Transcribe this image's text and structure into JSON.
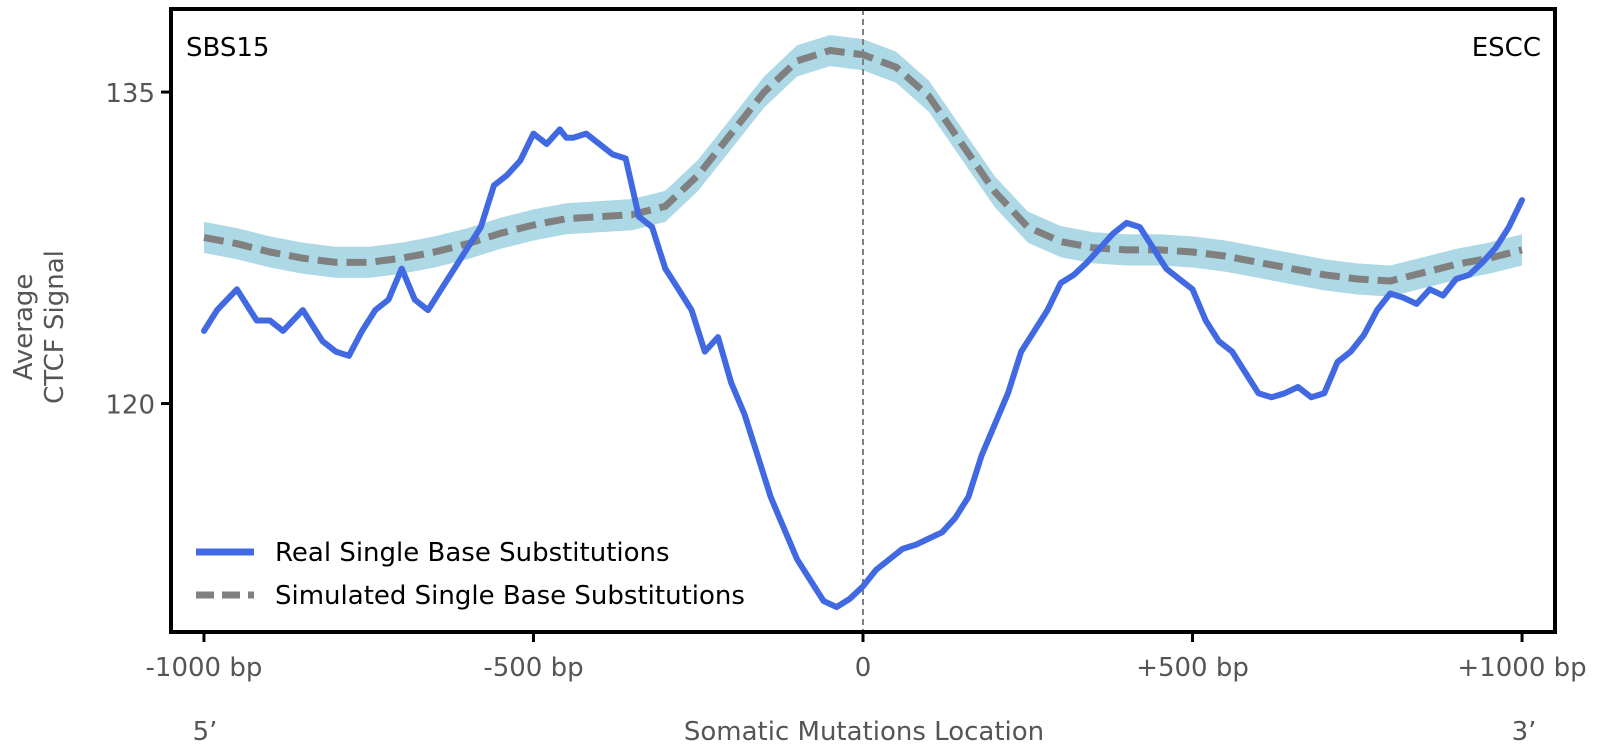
{
  "colors": {
    "real": "#4169E1",
    "simulated": "#808080",
    "band": "#ADD8E6",
    "frame": "#000000",
    "text": "#555555"
  },
  "chart_data": {
    "type": "line",
    "title_left": "SBS15",
    "title_right": "ESCC",
    "xlabel": "Somatic Mutations Location",
    "ylabel_line1": "Average",
    "ylabel_line2": "CTCF Signal",
    "xlim": [
      -1050,
      1050
    ],
    "ylim": [
      109,
      139
    ],
    "x_ticks": [
      {
        "value": -1000,
        "label": "-1000 bp"
      },
      {
        "value": -500,
        "label": "-500 bp"
      },
      {
        "value": 0,
        "label": "0"
      },
      {
        "value": 500,
        "label": "+500 bp"
      },
      {
        "value": 1000,
        "label": "+1000 bp"
      }
    ],
    "y_ticks": [
      {
        "value": 120,
        "label": "120"
      },
      {
        "value": 135,
        "label": "135"
      }
    ],
    "end_labels": {
      "left": "5’",
      "right": "3’"
    },
    "center_line": 0,
    "legend": {
      "position": "lower-left",
      "entries": [
        {
          "label": "Real Single Base Substitutions",
          "style": "solid"
        },
        {
          "label": "Simulated Single Base Substitutions",
          "style": "dashed"
        }
      ]
    },
    "series": [
      {
        "name": "Real Single Base Substitutions",
        "style": "solid",
        "x": [
          -1000,
          -980,
          -950,
          -920,
          -900,
          -880,
          -850,
          -820,
          -800,
          -780,
          -760,
          -740,
          -720,
          -700,
          -680,
          -660,
          -640,
          -620,
          -600,
          -580,
          -560,
          -540,
          -520,
          -500,
          -480,
          -460,
          -450,
          -440,
          -420,
          -400,
          -380,
          -360,
          -340,
          -320,
          -300,
          -280,
          -260,
          -240,
          -220,
          -200,
          -180,
          -160,
          -140,
          -120,
          -100,
          -80,
          -60,
          -40,
          -20,
          0,
          20,
          40,
          60,
          80,
          100,
          120,
          140,
          160,
          180,
          200,
          220,
          240,
          260,
          280,
          300,
          320,
          340,
          360,
          380,
          400,
          420,
          440,
          460,
          480,
          500,
          520,
          540,
          560,
          580,
          600,
          620,
          640,
          660,
          680,
          700,
          720,
          740,
          760,
          780,
          800,
          820,
          840,
          860,
          880,
          900,
          920,
          940,
          960,
          980,
          1000
        ],
        "values": [
          123.5,
          124.5,
          125.5,
          124,
          124,
          123.5,
          124.5,
          123,
          122.5,
          122.3,
          123.5,
          124.5,
          125,
          126.5,
          125,
          124.5,
          125.5,
          126.5,
          127.5,
          128.5,
          130.5,
          131,
          131.7,
          133,
          132.5,
          133.2,
          132.8,
          132.8,
          133,
          132.5,
          132,
          131.8,
          129,
          128.5,
          126.5,
          125.5,
          124.5,
          122.5,
          123.2,
          121,
          119.5,
          117.5,
          115.5,
          114,
          112.5,
          111.5,
          110.5,
          110.2,
          110.6,
          111.2,
          112,
          112.5,
          113,
          113.2,
          113.5,
          113.8,
          114.5,
          115.5,
          117.5,
          119,
          120.5,
          122.5,
          123.5,
          124.5,
          125.8,
          126.2,
          126.8,
          127.5,
          128.2,
          128.7,
          128.5,
          127.5,
          126.5,
          126,
          125.5,
          124,
          123,
          122.5,
          121.5,
          120.5,
          120.3,
          120.5,
          120.8,
          120.3,
          120.5,
          122,
          122.5,
          123.3,
          124.5,
          125.3,
          125.1,
          124.8,
          125.5,
          125.2,
          126,
          126.2,
          126.8,
          127.5,
          128.5,
          129.8
        ]
      },
      {
        "name": "Simulated Single Base Substitutions",
        "style": "dashed",
        "x": [
          -1000,
          -950,
          -900,
          -850,
          -800,
          -750,
          -700,
          -650,
          -600,
          -550,
          -500,
          -450,
          -400,
          -350,
          -300,
          -250,
          -200,
          -150,
          -100,
          -50,
          0,
          50,
          100,
          150,
          200,
          250,
          300,
          350,
          400,
          450,
          500,
          550,
          600,
          650,
          700,
          750,
          800,
          850,
          900,
          950,
          1000
        ],
        "values": [
          128,
          127.7,
          127.3,
          127,
          126.8,
          126.8,
          127,
          127.3,
          127.7,
          128.2,
          128.6,
          128.9,
          129,
          129.1,
          129.5,
          131,
          133,
          135,
          136.5,
          137,
          136.8,
          136.2,
          134.8,
          132.5,
          130.2,
          128.5,
          127.8,
          127.5,
          127.4,
          127.4,
          127.3,
          127.1,
          126.8,
          126.5,
          126.2,
          126,
          125.9,
          126.3,
          126.7,
          127,
          127.4
        ],
        "band_halfwidth": 0.75
      }
    ]
  }
}
